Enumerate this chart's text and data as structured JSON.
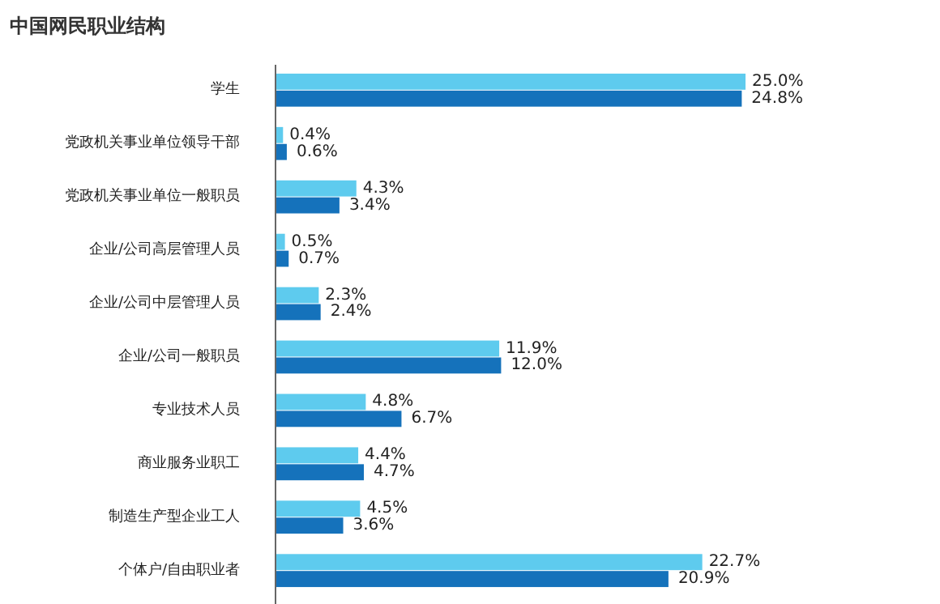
{
  "chart_data": {
    "type": "bar",
    "orientation": "horizontal",
    "title": "中国网民职业结构",
    "categories": [
      "学生",
      "党政机关事业单位领导干部",
      "党政机关事业单位一般职员",
      "企业/公司高层管理人员",
      "企业/公司中层管理人员",
      "企业/公司一般职员",
      "专业技术人员",
      "商业服务业职工",
      "制造生产型企业工人",
      "个体户/自由职业者"
    ],
    "series": [
      {
        "color": "#5ecbee",
        "values": [
          25.0,
          0.4,
          4.3,
          0.5,
          2.3,
          11.9,
          4.8,
          4.4,
          4.5,
          22.7
        ],
        "value_labels": [
          "25.0%",
          "0.4%",
          "4.3%",
          "0.5%",
          "2.3%",
          "11.9%",
          "4.8%",
          "4.4%",
          "4.5%",
          "22.7%"
        ]
      },
      {
        "color": "#1572bb",
        "values": [
          24.8,
          0.6,
          3.4,
          0.7,
          2.4,
          12.0,
          6.7,
          4.7,
          3.6,
          20.9
        ],
        "value_labels": [
          "24.8%",
          "0.6%",
          "3.4%",
          "0.7%",
          "2.4%",
          "12.0%",
          "6.7%",
          "4.7%",
          "3.6%",
          "20.9%"
        ]
      }
    ]
  }
}
